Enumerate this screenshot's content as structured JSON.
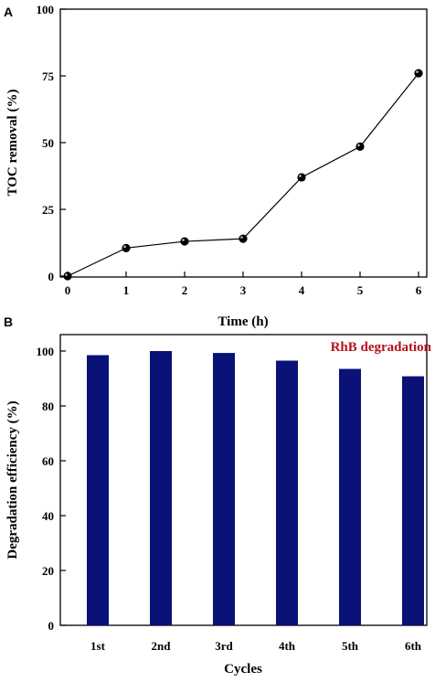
{
  "chart_data": [
    {
      "panel": "A",
      "type": "line",
      "x": [
        0,
        1,
        2,
        3,
        4,
        5,
        6
      ],
      "y": [
        0,
        10.5,
        13,
        14,
        37,
        48.5,
        76
      ],
      "xticks": [
        "0",
        "1",
        "2",
        "3",
        "4",
        "5",
        "6"
      ],
      "yticks": [
        "0",
        "25",
        "50",
        "75",
        "100"
      ],
      "xlim": [
        0,
        6
      ],
      "ylim": [
        0,
        100
      ],
      "xlabel": "Time (h)",
      "ylabel": "TOC removal (%)",
      "grid": false,
      "colors": {
        "line": "#000000",
        "marker": "#000000"
      }
    },
    {
      "panel": "B",
      "type": "bar",
      "categories": [
        "1st",
        "2nd",
        "3rd",
        "4th",
        "5th",
        "6th"
      ],
      "values": [
        98.5,
        100,
        99.3,
        96.5,
        93.5,
        90.8
      ],
      "yticks": [
        "0",
        "20",
        "40",
        "60",
        "80",
        "100"
      ],
      "ylim": [
        0,
        106
      ],
      "xlabel": "Cycles",
      "ylabel": "Degradation efficiency (%)",
      "annotation": "RhB degradation",
      "grid": false,
      "colors": {
        "bar": "#0a1278",
        "annotation": "#b5121b"
      }
    }
  ]
}
